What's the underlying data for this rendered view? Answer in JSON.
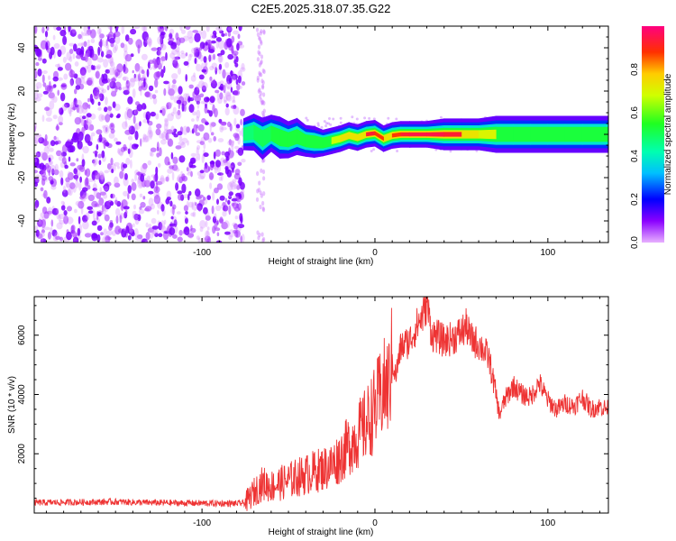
{
  "title": "C2E5.2025.318.07.35.G22",
  "chart_data": [
    {
      "type": "heatmap",
      "xlabel": "Height of straight line (km)",
      "ylabel": "Frequency (Hz)",
      "xlim": [
        -197,
        135
      ],
      "ylim": [
        -50,
        50
      ],
      "xticks": [
        -100,
        0,
        100
      ],
      "yticks": [
        -40,
        -20,
        0,
        20,
        40
      ],
      "noise_region_x": [
        -197,
        -76
      ],
      "signal_band": [
        [
          -76,
          0.0,
          3.0,
          0.45
        ],
        [
          -70,
          1.0,
          3.5,
          0.5
        ],
        [
          -65,
          -2.0,
          4.0,
          0.5
        ],
        [
          -60,
          0.5,
          3.5,
          0.5
        ],
        [
          -55,
          -1.5,
          4.0,
          0.55
        ],
        [
          -50,
          -2.5,
          3.5,
          0.55
        ],
        [
          -45,
          -1.0,
          3.5,
          0.6
        ],
        [
          -40,
          -3.0,
          3.0,
          0.6
        ],
        [
          -35,
          -3.5,
          3.0,
          0.6
        ],
        [
          -30,
          -4.0,
          2.5,
          0.62
        ],
        [
          -25,
          -3.0,
          2.5,
          0.65
        ],
        [
          -20,
          -2.0,
          2.5,
          0.7
        ],
        [
          -15,
          -0.5,
          2.5,
          0.8
        ],
        [
          -10,
          -1.5,
          2.5,
          0.75
        ],
        [
          -5,
          0.0,
          2.5,
          0.9
        ],
        [
          0,
          0.5,
          2.5,
          0.95
        ],
        [
          5,
          -2.0,
          2.5,
          0.8
        ],
        [
          10,
          -0.5,
          2.5,
          0.85
        ],
        [
          15,
          0.0,
          2.5,
          0.9
        ],
        [
          20,
          0.0,
          2.5,
          0.95
        ],
        [
          30,
          0.0,
          2.5,
          1.0
        ],
        [
          40,
          0.0,
          3.0,
          0.95
        ],
        [
          50,
          0.0,
          3.0,
          0.9
        ],
        [
          60,
          0.0,
          3.0,
          0.75
        ],
        [
          70,
          0.0,
          3.5,
          0.65
        ],
        [
          80,
          0.0,
          3.5,
          0.6
        ],
        [
          90,
          0.0,
          3.5,
          0.55
        ],
        [
          100,
          0.0,
          3.5,
          0.55
        ],
        [
          110,
          0.0,
          3.5,
          0.55
        ],
        [
          120,
          0.0,
          3.5,
          0.55
        ],
        [
          135,
          0.0,
          3.5,
          0.55
        ]
      ],
      "colorbar": {
        "label": "Normalized spectral amplitude",
        "range": [
          0,
          1
        ],
        "ticks": [
          "0.0",
          "0.2",
          "0.4",
          "0.6",
          "0.8"
        ],
        "tick_values": [
          0,
          0.2,
          0.4,
          0.6,
          0.8
        ]
      }
    },
    {
      "type": "line",
      "xlabel": "Height of straight line (km)",
      "ylabel": "SNR (10 * v/v)",
      "xlim": [
        -197,
        135
      ],
      "ylim": [
        0,
        7300
      ],
      "xticks": [
        -100,
        0,
        100
      ],
      "yticks": [
        2000,
        4000,
        6000
      ],
      "line_color": "#ee3333",
      "x": [
        -197,
        -150,
        -130,
        -100,
        -80,
        -75,
        -70,
        -65,
        -60,
        -55,
        -50,
        -45,
        -40,
        -35,
        -30,
        -25,
        -20,
        -15,
        -10,
        -5,
        0,
        5,
        8,
        10,
        12,
        15,
        20,
        25,
        28,
        30,
        33,
        35,
        40,
        45,
        50,
        53,
        55,
        60,
        63,
        66,
        70,
        72,
        75,
        80,
        85,
        90,
        95,
        100,
        105,
        110,
        115,
        120,
        125,
        130,
        135
      ],
      "values": [
        350,
        380,
        350,
        330,
        320,
        340,
        700,
        1000,
        900,
        1000,
        1100,
        1200,
        1300,
        1400,
        1500,
        1600,
        1900,
        2300,
        2600,
        3000,
        3500,
        4200,
        4300,
        5200,
        4600,
        5600,
        5800,
        6400,
        6700,
        7100,
        6000,
        6000,
        5800,
        5900,
        6100,
        6300,
        5900,
        5700,
        5500,
        5200,
        4000,
        3300,
        3800,
        4300,
        4000,
        3900,
        4400,
        3800,
        3500,
        3700,
        3600,
        3900,
        3500,
        3600,
        3500
      ]
    }
  ]
}
